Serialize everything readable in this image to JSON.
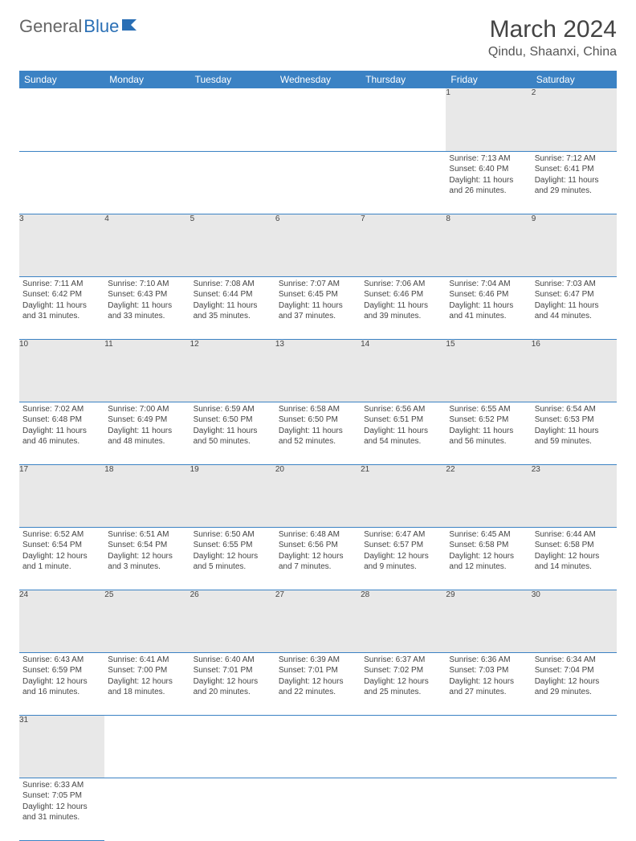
{
  "brand": {
    "part1": "General",
    "part2": "Blue"
  },
  "title": "March 2024",
  "location": "Qindu, Shaanxi, China",
  "colors": {
    "header_bg": "#3b82c4",
    "header_text": "#ffffff",
    "daynum_bg": "#e8e8e8",
    "border": "#3b82c4",
    "text": "#444444",
    "brand_blue": "#2a6fb5"
  },
  "weekdays": [
    "Sunday",
    "Monday",
    "Tuesday",
    "Wednesday",
    "Thursday",
    "Friday",
    "Saturday"
  ],
  "weeks": [
    [
      null,
      null,
      null,
      null,
      null,
      {
        "n": "1",
        "sr": "Sunrise: 7:13 AM",
        "ss": "Sunset: 6:40 PM",
        "dl": "Daylight: 11 hours and 26 minutes."
      },
      {
        "n": "2",
        "sr": "Sunrise: 7:12 AM",
        "ss": "Sunset: 6:41 PM",
        "dl": "Daylight: 11 hours and 29 minutes."
      }
    ],
    [
      {
        "n": "3",
        "sr": "Sunrise: 7:11 AM",
        "ss": "Sunset: 6:42 PM",
        "dl": "Daylight: 11 hours and 31 minutes."
      },
      {
        "n": "4",
        "sr": "Sunrise: 7:10 AM",
        "ss": "Sunset: 6:43 PM",
        "dl": "Daylight: 11 hours and 33 minutes."
      },
      {
        "n": "5",
        "sr": "Sunrise: 7:08 AM",
        "ss": "Sunset: 6:44 PM",
        "dl": "Daylight: 11 hours and 35 minutes."
      },
      {
        "n": "6",
        "sr": "Sunrise: 7:07 AM",
        "ss": "Sunset: 6:45 PM",
        "dl": "Daylight: 11 hours and 37 minutes."
      },
      {
        "n": "7",
        "sr": "Sunrise: 7:06 AM",
        "ss": "Sunset: 6:46 PM",
        "dl": "Daylight: 11 hours and 39 minutes."
      },
      {
        "n": "8",
        "sr": "Sunrise: 7:04 AM",
        "ss": "Sunset: 6:46 PM",
        "dl": "Daylight: 11 hours and 41 minutes."
      },
      {
        "n": "9",
        "sr": "Sunrise: 7:03 AM",
        "ss": "Sunset: 6:47 PM",
        "dl": "Daylight: 11 hours and 44 minutes."
      }
    ],
    [
      {
        "n": "10",
        "sr": "Sunrise: 7:02 AM",
        "ss": "Sunset: 6:48 PM",
        "dl": "Daylight: 11 hours and 46 minutes."
      },
      {
        "n": "11",
        "sr": "Sunrise: 7:00 AM",
        "ss": "Sunset: 6:49 PM",
        "dl": "Daylight: 11 hours and 48 minutes."
      },
      {
        "n": "12",
        "sr": "Sunrise: 6:59 AM",
        "ss": "Sunset: 6:50 PM",
        "dl": "Daylight: 11 hours and 50 minutes."
      },
      {
        "n": "13",
        "sr": "Sunrise: 6:58 AM",
        "ss": "Sunset: 6:50 PM",
        "dl": "Daylight: 11 hours and 52 minutes."
      },
      {
        "n": "14",
        "sr": "Sunrise: 6:56 AM",
        "ss": "Sunset: 6:51 PM",
        "dl": "Daylight: 11 hours and 54 minutes."
      },
      {
        "n": "15",
        "sr": "Sunrise: 6:55 AM",
        "ss": "Sunset: 6:52 PM",
        "dl": "Daylight: 11 hours and 56 minutes."
      },
      {
        "n": "16",
        "sr": "Sunrise: 6:54 AM",
        "ss": "Sunset: 6:53 PM",
        "dl": "Daylight: 11 hours and 59 minutes."
      }
    ],
    [
      {
        "n": "17",
        "sr": "Sunrise: 6:52 AM",
        "ss": "Sunset: 6:54 PM",
        "dl": "Daylight: 12 hours and 1 minute."
      },
      {
        "n": "18",
        "sr": "Sunrise: 6:51 AM",
        "ss": "Sunset: 6:54 PM",
        "dl": "Daylight: 12 hours and 3 minutes."
      },
      {
        "n": "19",
        "sr": "Sunrise: 6:50 AM",
        "ss": "Sunset: 6:55 PM",
        "dl": "Daylight: 12 hours and 5 minutes."
      },
      {
        "n": "20",
        "sr": "Sunrise: 6:48 AM",
        "ss": "Sunset: 6:56 PM",
        "dl": "Daylight: 12 hours and 7 minutes."
      },
      {
        "n": "21",
        "sr": "Sunrise: 6:47 AM",
        "ss": "Sunset: 6:57 PM",
        "dl": "Daylight: 12 hours and 9 minutes."
      },
      {
        "n": "22",
        "sr": "Sunrise: 6:45 AM",
        "ss": "Sunset: 6:58 PM",
        "dl": "Daylight: 12 hours and 12 minutes."
      },
      {
        "n": "23",
        "sr": "Sunrise: 6:44 AM",
        "ss": "Sunset: 6:58 PM",
        "dl": "Daylight: 12 hours and 14 minutes."
      }
    ],
    [
      {
        "n": "24",
        "sr": "Sunrise: 6:43 AM",
        "ss": "Sunset: 6:59 PM",
        "dl": "Daylight: 12 hours and 16 minutes."
      },
      {
        "n": "25",
        "sr": "Sunrise: 6:41 AM",
        "ss": "Sunset: 7:00 PM",
        "dl": "Daylight: 12 hours and 18 minutes."
      },
      {
        "n": "26",
        "sr": "Sunrise: 6:40 AM",
        "ss": "Sunset: 7:01 PM",
        "dl": "Daylight: 12 hours and 20 minutes."
      },
      {
        "n": "27",
        "sr": "Sunrise: 6:39 AM",
        "ss": "Sunset: 7:01 PM",
        "dl": "Daylight: 12 hours and 22 minutes."
      },
      {
        "n": "28",
        "sr": "Sunrise: 6:37 AM",
        "ss": "Sunset: 7:02 PM",
        "dl": "Daylight: 12 hours and 25 minutes."
      },
      {
        "n": "29",
        "sr": "Sunrise: 6:36 AM",
        "ss": "Sunset: 7:03 PM",
        "dl": "Daylight: 12 hours and 27 minutes."
      },
      {
        "n": "30",
        "sr": "Sunrise: 6:34 AM",
        "ss": "Sunset: 7:04 PM",
        "dl": "Daylight: 12 hours and 29 minutes."
      }
    ],
    [
      {
        "n": "31",
        "sr": "Sunrise: 6:33 AM",
        "ss": "Sunset: 7:05 PM",
        "dl": "Daylight: 12 hours and 31 minutes."
      },
      null,
      null,
      null,
      null,
      null,
      null
    ]
  ]
}
